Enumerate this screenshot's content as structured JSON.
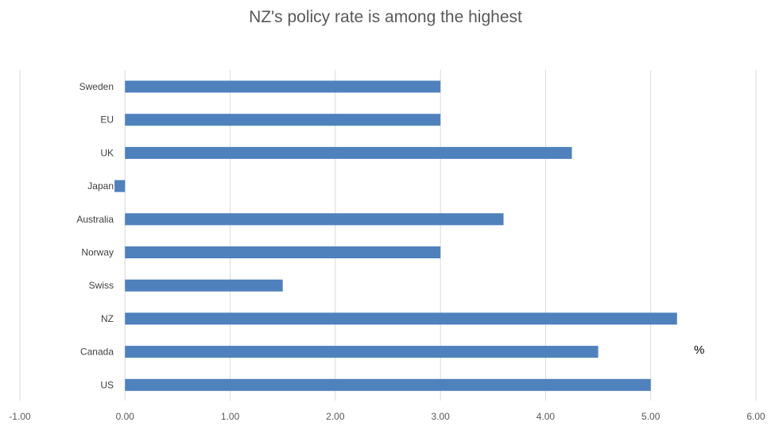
{
  "chart_data": {
    "type": "bar",
    "orientation": "horizontal",
    "title": "NZ's policy rate is among the highest",
    "categories": [
      "Sweden",
      "EU",
      "UK",
      "Japan",
      "Australia",
      "Norway",
      "Swiss",
      "NZ",
      "Canada",
      "US"
    ],
    "values": [
      3.0,
      3.0,
      4.25,
      -0.1,
      3.6,
      3.0,
      1.5,
      5.25,
      4.5,
      5.0
    ],
    "xlim": [
      -1.0,
      6.0
    ],
    "xticks": [
      "-1.00",
      "0.00",
      "1.00",
      "2.00",
      "3.00",
      "4.00",
      "5.00",
      "6.00"
    ],
    "xtick_values": [
      -1,
      0,
      1,
      2,
      3,
      4,
      5,
      6
    ],
    "unit_label": "%",
    "grid": "vertical",
    "bar_color": "#4F81BD"
  }
}
